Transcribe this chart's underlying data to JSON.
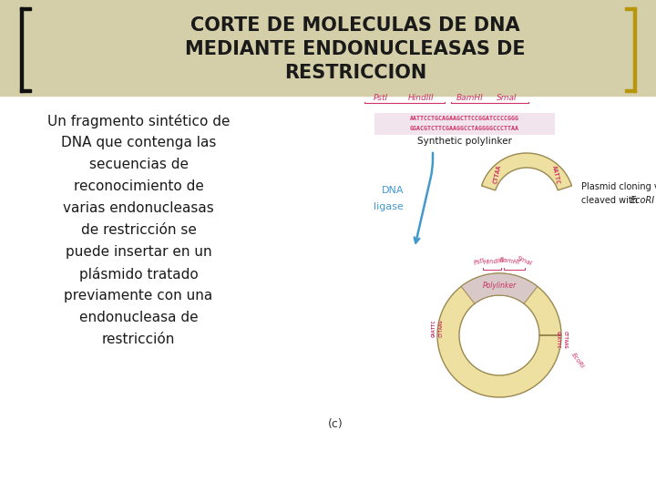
{
  "title_line1": "CORTE DE MOLECULAS DE DNA",
  "title_line2": "MEDIANTE ENDONUCLEASAS DE",
  "title_line3": "RESTRICCION",
  "title_fontsize": 15,
  "title_color": "#1a1a1a",
  "bg_color": "#ffffff",
  "left_bracket_color": "#111111",
  "right_bracket_color": "#b8960c",
  "header_bar_color": "#d4cfa8",
  "body_text_lines": [
    "Un fragmento sintético de",
    "DNA que contenga las",
    "secuencias de",
    "reconocimiento de",
    "varias endonucleasas",
    "de restricción se",
    "puede insertar en un",
    "plásmido tratado",
    "previamente con una",
    "endonucleasa de",
    "restricción"
  ],
  "body_fontsize": 11,
  "body_color": "#1a1a1a",
  "polylinker_label": "Synthetic polylinker",
  "dna_ligase_label1": "DNA",
  "dna_ligase_label2": "ligase",
  "plasmid_label1": "Plasmid cloning vector",
  "plasmid_label2": "cleaved with ",
  "plasmid_label2_italic": "EcoRI",
  "c_label": "(c)",
  "enzyme_labels": [
    "PstI",
    "HindIII",
    "BamHI",
    "SmaI"
  ],
  "seq_top": "AATTCCTGCAGAAGCTTCCGGATCCCCGGG",
  "seq_bot": "GGACGTCTTCGAAGGCCTAGGGGCCCTTAA",
  "seq_color": "#cc3366",
  "enzyme_color": "#cc3366",
  "dna_ligase_color": "#4499cc",
  "arc_fill_color": "#ede0a0",
  "arc_edge_color": "#9a8850",
  "ring_fill_color": "#ede0a0",
  "ring_edge_color": "#9a8850",
  "polylinker_fill_color": "#d8c8c8"
}
